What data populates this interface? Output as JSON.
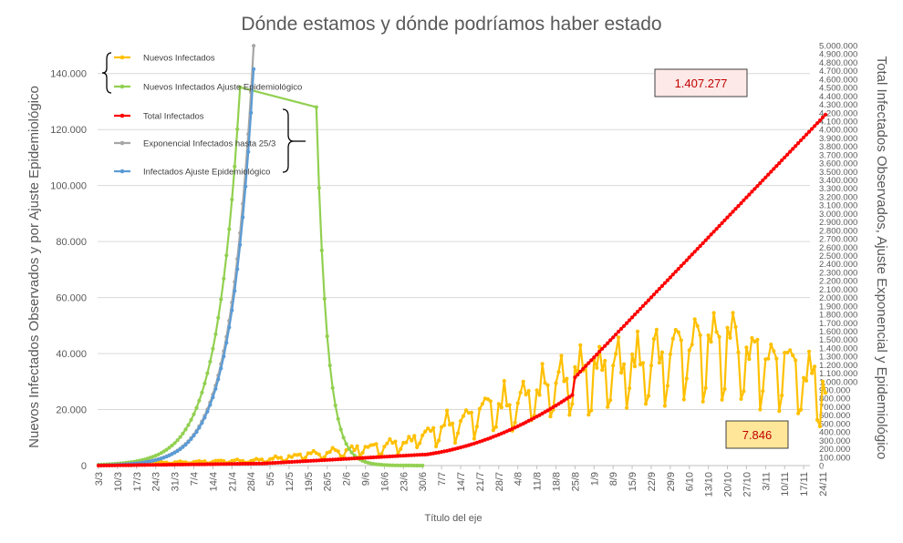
{
  "chart_data": {
    "type": "line",
    "title": "Dónde estamos y dónde podríamos haber estado",
    "xlabel": "Título del eje",
    "ylabel_left": "Nuevos Infectados Observados y por Ajuste Epidemiológico",
    "ylabel_right": "Total Infectados Observados, Ajuste Exponencial y Epidemiológico",
    "ylim_left": [
      0,
      150000
    ],
    "ylim_right": [
      0,
      5000000
    ],
    "y_left_ticks": [
      0,
      20000,
      40000,
      60000,
      80000,
      100000,
      120000,
      140000
    ],
    "y_left_tick_labels": [
      "0",
      "20.000",
      "40.000",
      "60.000",
      "80.000",
      "100.000",
      "120.000",
      "140.000"
    ],
    "y_right_step": 100000,
    "x_tick_labels": [
      "3/3",
      "10/3",
      "17/3",
      "24/3",
      "31/3",
      "7/4",
      "14/4",
      "21/4",
      "28/4",
      "5/5",
      "12/5",
      "19/5",
      "26/5",
      "2/6",
      "9/6",
      "16/6",
      "23/6",
      "30/6",
      "7/7",
      "14/7",
      "21/7",
      "28/7",
      "4/8",
      "11/8",
      "18/8",
      "25/8",
      "1/9",
      "8/9",
      "15/9",
      "22/9",
      "29/9",
      "6/10",
      "13/10",
      "20/10",
      "27/10",
      "3/11",
      "10/11",
      "17/11",
      "24/11"
    ],
    "series": [
      {
        "name": "Nuevos Infectados",
        "axis": "left",
        "color": "#FFC000"
      },
      {
        "name": "Nuevos Infectados Ajuste Epidemiológico",
        "axis": "left",
        "color": "#92D050"
      },
      {
        "name": "Total Infectados",
        "axis": "right",
        "color": "#FF0000"
      },
      {
        "name": "Exponencial Infectados hasta 25/3",
        "axis": "right",
        "color": "#A6A6A6"
      },
      {
        "name": "Infectados Ajuste Epidemiológico",
        "axis": "right",
        "color": "#5B9BD5"
      }
    ],
    "annotations": [
      {
        "text": "1.407.277",
        "bg": "#FDE9E7"
      },
      {
        "text": "7.846",
        "bg": "#FFE699"
      }
    ]
  }
}
